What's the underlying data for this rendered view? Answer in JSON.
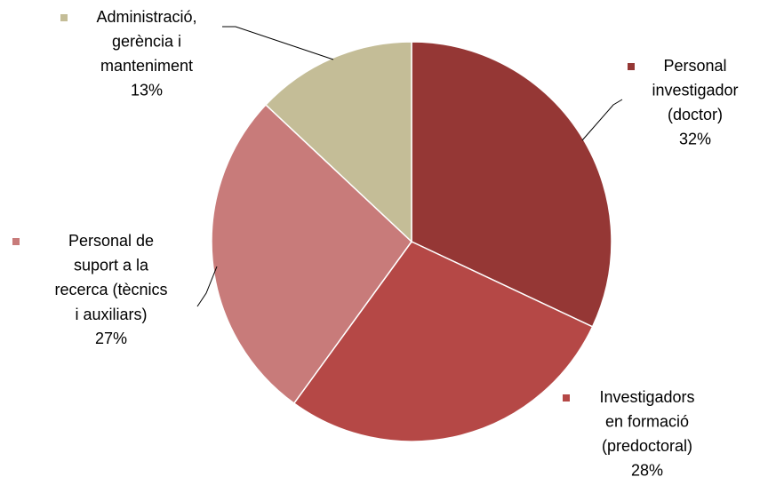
{
  "chart_data": {
    "type": "pie",
    "categories": [
      "Personal investigador (doctor)",
      "Investigadors en formació (predoctoral)",
      "Personal de suport a la recerca (tècnics i auxiliars)",
      "Administració, gerència i manteniment"
    ],
    "values": [
      32,
      28,
      27,
      13
    ],
    "value_labels": [
      "32%",
      "28%",
      "27%",
      "13%"
    ],
    "colors": [
      "#953735",
      "#b54846",
      "#c87b7a",
      "#c4bd97"
    ]
  }
}
